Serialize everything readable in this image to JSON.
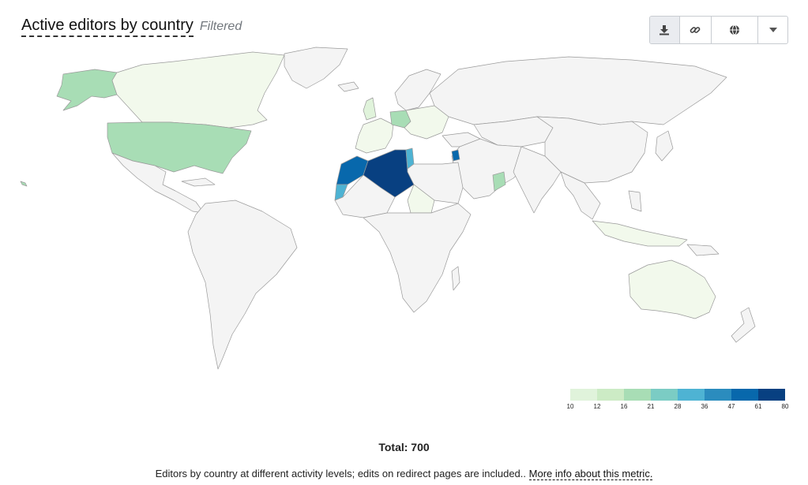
{
  "header": {
    "title": "Active editors by country",
    "badge": "Filtered"
  },
  "toolbar": {
    "buttons": [
      {
        "icon": "download-icon",
        "active": true
      },
      {
        "icon": "link-icon",
        "active": false
      },
      {
        "icon": "globe-icon",
        "active": false
      },
      {
        "icon": "caret-down-icon",
        "active": false
      }
    ]
  },
  "colors": {
    "land": "#f4f4f4",
    "border": "#9a9a9a",
    "scale": [
      "#e0f3db",
      "#ccebc5",
      "#a8ddb5",
      "#7bccc4",
      "#4eb3d3",
      "#2b8cbe",
      "#0868ac",
      "#084081"
    ],
    "low_fill": "#f2f9ec"
  },
  "legend": {
    "ticks": [
      "10",
      "12",
      "16",
      "21",
      "28",
      "36",
      "47",
      "61",
      "80"
    ]
  },
  "total": "Total: 700",
  "description": {
    "text": "Editors by country at different activity levels; edits on redirect pages are included..",
    "link": "More info about this metric."
  }
}
